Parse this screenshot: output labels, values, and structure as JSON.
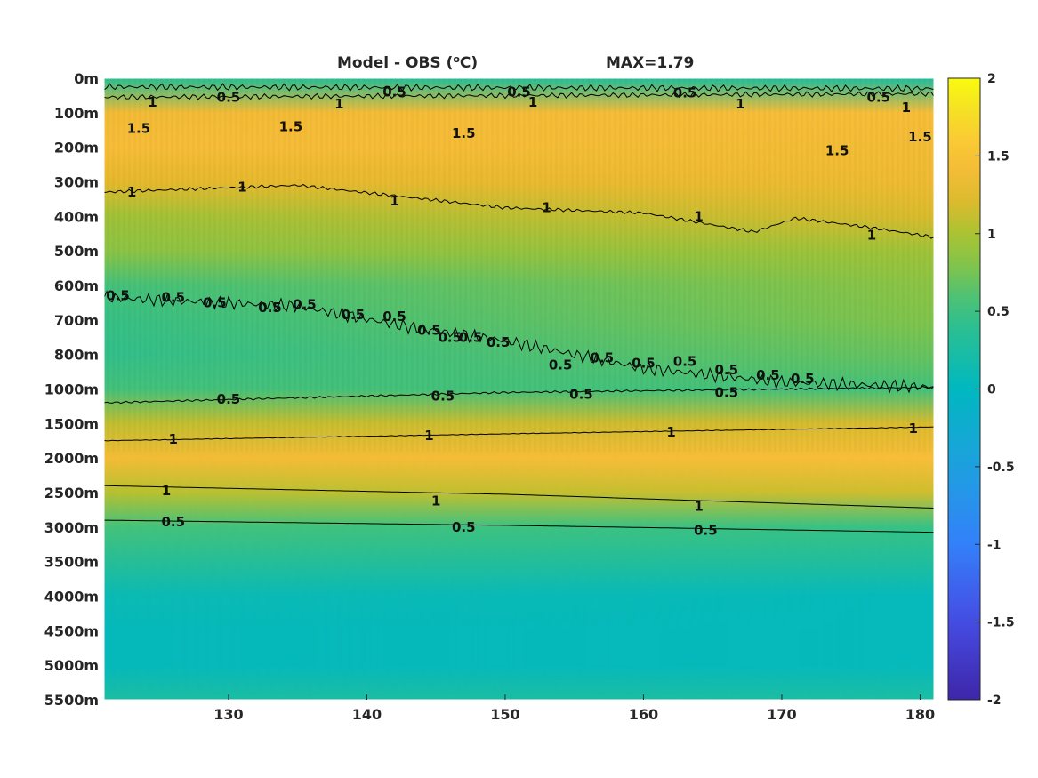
{
  "chart_data": {
    "type": "heatmap",
    "title": "Model - OBS (ᵒC)",
    "title_parts": {
      "prefix": "Model - OBS (",
      "superscript": "o",
      "suffix": "C)"
    },
    "max_label": "MAX=1.79",
    "xlim": [
      121,
      181
    ],
    "x_ticks": [
      130,
      140,
      150,
      160,
      170,
      180
    ],
    "y_ticks": [
      "0m",
      "100m",
      "200m",
      "300m",
      "400m",
      "500m",
      "600m",
      "700m",
      "800m",
      "1000m",
      "1500m",
      "2000m",
      "2500m",
      "3000m",
      "3500m",
      "4000m",
      "4500m",
      "5000m",
      "5500m"
    ],
    "colorbar": {
      "range": [
        -2,
        2
      ],
      "ticks": [
        "2",
        "1.5",
        "1",
        "0.5",
        "0",
        "-0.5",
        "-1",
        "-1.5",
        "-2"
      ],
      "colormap": "parula"
    },
    "depth_profile": {
      "depths": [
        "0m",
        "100m",
        "200m",
        "300m",
        "400m",
        "500m",
        "600m",
        "700m",
        "800m",
        "1000m",
        "1500m",
        "2000m",
        "2500m",
        "3000m",
        "3500m",
        "4000m",
        "4500m",
        "5000m",
        "5500m"
      ],
      "west_values": [
        0.4,
        1.4,
        1.45,
        1.25,
        0.95,
        0.85,
        0.55,
        0.5,
        0.45,
        0.55,
        1.1,
        1.4,
        1.05,
        0.55,
        0.35,
        0.1,
        0.05,
        0.05,
        0.25
      ],
      "east_values": [
        0.3,
        1.45,
        1.4,
        1.35,
        1.2,
        0.95,
        0.85,
        0.8,
        0.7,
        0.55,
        1.2,
        1.45,
        1.15,
        0.5,
        0.3,
        0.05,
        0.05,
        0.05,
        0.25
      ]
    },
    "contours": [
      {
        "level": 1,
        "name": "c1-surface",
        "x": [
          121,
          181
        ],
        "y": [
          0.55,
          0.45
        ],
        "noise": 0.08
      },
      {
        "level": 0.5,
        "name": "c05-surface",
        "x": [
          121,
          181
        ],
        "y": [
          0.25,
          0.3
        ],
        "noise": 0.1
      },
      {
        "level": 1,
        "name": "c1-thermocline",
        "x": [
          121,
          135,
          150,
          160,
          168,
          171,
          176,
          181
        ],
        "y": [
          3.3,
          3.1,
          3.75,
          3.9,
          4.45,
          4.05,
          4.3,
          4.6
        ],
        "noise": 0.05
      },
      {
        "level": 0.5,
        "name": "c05-mid",
        "x": [
          121,
          135,
          143,
          150,
          160,
          170,
          181
        ],
        "y": [
          6.35,
          6.6,
          7.2,
          7.6,
          8.4,
          8.8,
          8.95
        ],
        "noise": 0.2
      },
      {
        "level": 0.5,
        "name": "c05-1000m",
        "x": [
          121,
          150,
          181
        ],
        "y": [
          9.4,
          9.1,
          8.95
        ],
        "noise": 0.03
      },
      {
        "level": 1,
        "name": "c1-1500m",
        "x": [
          121,
          150,
          181
        ],
        "y": [
          10.5,
          10.3,
          10.1
        ],
        "noise": 0.01
      },
      {
        "level": 1,
        "name": "c1-2500m",
        "x": [
          121,
          150,
          181
        ],
        "y": [
          11.8,
          12.05,
          12.45
        ],
        "noise": 0
      },
      {
        "level": 0.5,
        "name": "c05-3000m",
        "x": [
          121,
          150,
          181
        ],
        "y": [
          12.8,
          12.95,
          13.15
        ],
        "noise": 0
      }
    ],
    "contour_labels": [
      {
        "text": "0.5",
        "x": 130,
        "y": 0.55
      },
      {
        "text": "0.5",
        "x": 142,
        "y": 0.4
      },
      {
        "text": "0.5",
        "x": 151,
        "y": 0.4
      },
      {
        "text": "0.5",
        "x": 163,
        "y": 0.42
      },
      {
        "text": "0.5",
        "x": 177,
        "y": 0.55
      },
      {
        "text": "1",
        "x": 124.5,
        "y": 0.7
      },
      {
        "text": "1",
        "x": 138,
        "y": 0.75
      },
      {
        "text": "1",
        "x": 152,
        "y": 0.7
      },
      {
        "text": "1",
        "x": 167,
        "y": 0.75
      },
      {
        "text": "1",
        "x": 179,
        "y": 0.85
      },
      {
        "text": "1.5",
        "x": 123.5,
        "y": 1.45
      },
      {
        "text": "1.5",
        "x": 134.5,
        "y": 1.4
      },
      {
        "text": "1.5",
        "x": 147,
        "y": 1.6
      },
      {
        "text": "1.5",
        "x": 174,
        "y": 2.1
      },
      {
        "text": "1.5",
        "x": 180,
        "y": 1.7
      },
      {
        "text": "1",
        "x": 123,
        "y": 3.3
      },
      {
        "text": "1",
        "x": 131,
        "y": 3.15
      },
      {
        "text": "1",
        "x": 142,
        "y": 3.55
      },
      {
        "text": "1",
        "x": 153,
        "y": 3.75
      },
      {
        "text": "1",
        "x": 164,
        "y": 4.0
      },
      {
        "text": "1",
        "x": 176.5,
        "y": 4.55
      },
      {
        "text": "0.5",
        "x": 122,
        "y": 6.3
      },
      {
        "text": "0.5",
        "x": 126,
        "y": 6.35
      },
      {
        "text": "0.5",
        "x": 129,
        "y": 6.5
      },
      {
        "text": "0.5",
        "x": 133,
        "y": 6.65
      },
      {
        "text": "0.5",
        "x": 135.5,
        "y": 6.55
      },
      {
        "text": "0.5",
        "x": 139,
        "y": 6.85
      },
      {
        "text": "0.5",
        "x": 142,
        "y": 6.9
      },
      {
        "text": "0.5",
        "x": 144.5,
        "y": 7.3
      },
      {
        "text": "0.5",
        "x": 146,
        "y": 7.5
      },
      {
        "text": "0.5",
        "x": 147.5,
        "y": 7.5
      },
      {
        "text": "0.5",
        "x": 149.5,
        "y": 7.65
      },
      {
        "text": "0.5",
        "x": 154,
        "y": 8.3
      },
      {
        "text": "0.5",
        "x": 157,
        "y": 8.1
      },
      {
        "text": "0.5",
        "x": 160,
        "y": 8.25
      },
      {
        "text": "0.5",
        "x": 163,
        "y": 8.2
      },
      {
        "text": "0.5",
        "x": 166,
        "y": 8.45
      },
      {
        "text": "0.5",
        "x": 169,
        "y": 8.6
      },
      {
        "text": "0.5",
        "x": 171.5,
        "y": 8.7
      },
      {
        "text": "0.5",
        "x": 130,
        "y": 9.3
      },
      {
        "text": "0.5",
        "x": 145.5,
        "y": 9.2
      },
      {
        "text": "0.5",
        "x": 155.5,
        "y": 9.15
      },
      {
        "text": "0.5",
        "x": 166,
        "y": 9.1
      },
      {
        "text": "1",
        "x": 126,
        "y": 10.45
      },
      {
        "text": "1",
        "x": 144.5,
        "y": 10.35
      },
      {
        "text": "1",
        "x": 162,
        "y": 10.25
      },
      {
        "text": "1",
        "x": 179.5,
        "y": 10.15
      },
      {
        "text": "1",
        "x": 125.5,
        "y": 11.95
      },
      {
        "text": "1",
        "x": 145,
        "y": 12.25
      },
      {
        "text": "1",
        "x": 164,
        "y": 12.4
      },
      {
        "text": "0.5",
        "x": 126,
        "y": 12.85
      },
      {
        "text": "0.5",
        "x": 147,
        "y": 13.0
      },
      {
        "text": "0.5",
        "x": 164.5,
        "y": 13.1
      }
    ]
  }
}
